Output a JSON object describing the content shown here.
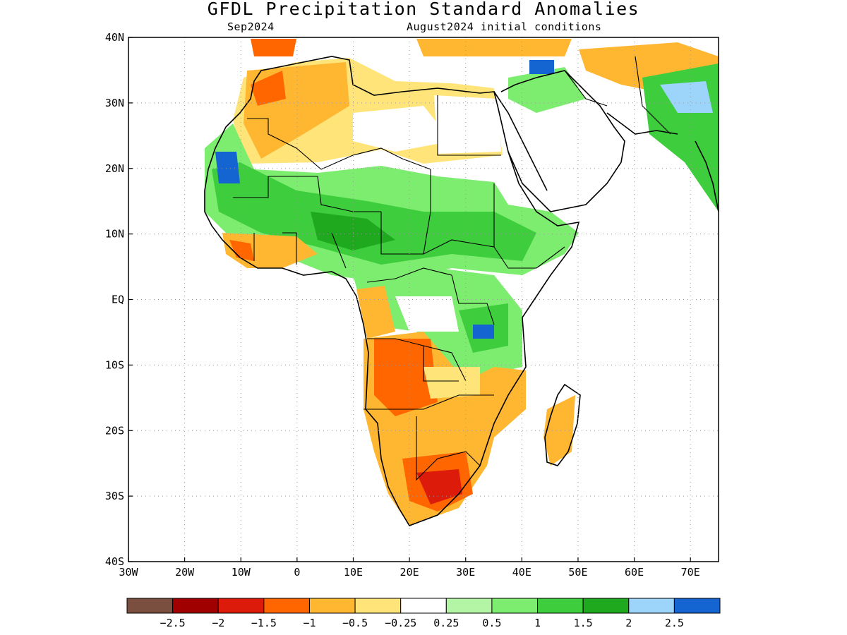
{
  "title": "GFDL Precipitation Standard Anomalies",
  "subtitle_left": "Sep2024",
  "subtitle_right": "August2024 initial conditions",
  "map": {
    "lat_range": [
      -40,
      40
    ],
    "lon_range": [
      -30,
      75
    ],
    "lat_labels": [
      "40N",
      "30N",
      "20N",
      "10N",
      "EQ",
      "10S",
      "20S",
      "30S",
      "40S"
    ],
    "lon_labels": [
      "30W",
      "20W",
      "10W",
      "0",
      "10E",
      "20E",
      "30E",
      "40E",
      "50E",
      "60E",
      "70E"
    ],
    "grid": "dotted"
  },
  "colorbar": {
    "colors": [
      "#7a4f3f",
      "#a10000",
      "#dc1b0b",
      "#ff6600",
      "#ffb732",
      "#ffe47a",
      "#ffffff",
      "#b3f5a4",
      "#7ded6f",
      "#3dcd3d",
      "#1ea91e",
      "#9dd4fa",
      "#1464d2"
    ],
    "labels": [
      "−2.5",
      "−2",
      "−1.5",
      "−1",
      "−0.5",
      "−0.25",
      "0.25",
      "0.5",
      "1",
      "1.5",
      "2",
      "2.5"
    ]
  }
}
